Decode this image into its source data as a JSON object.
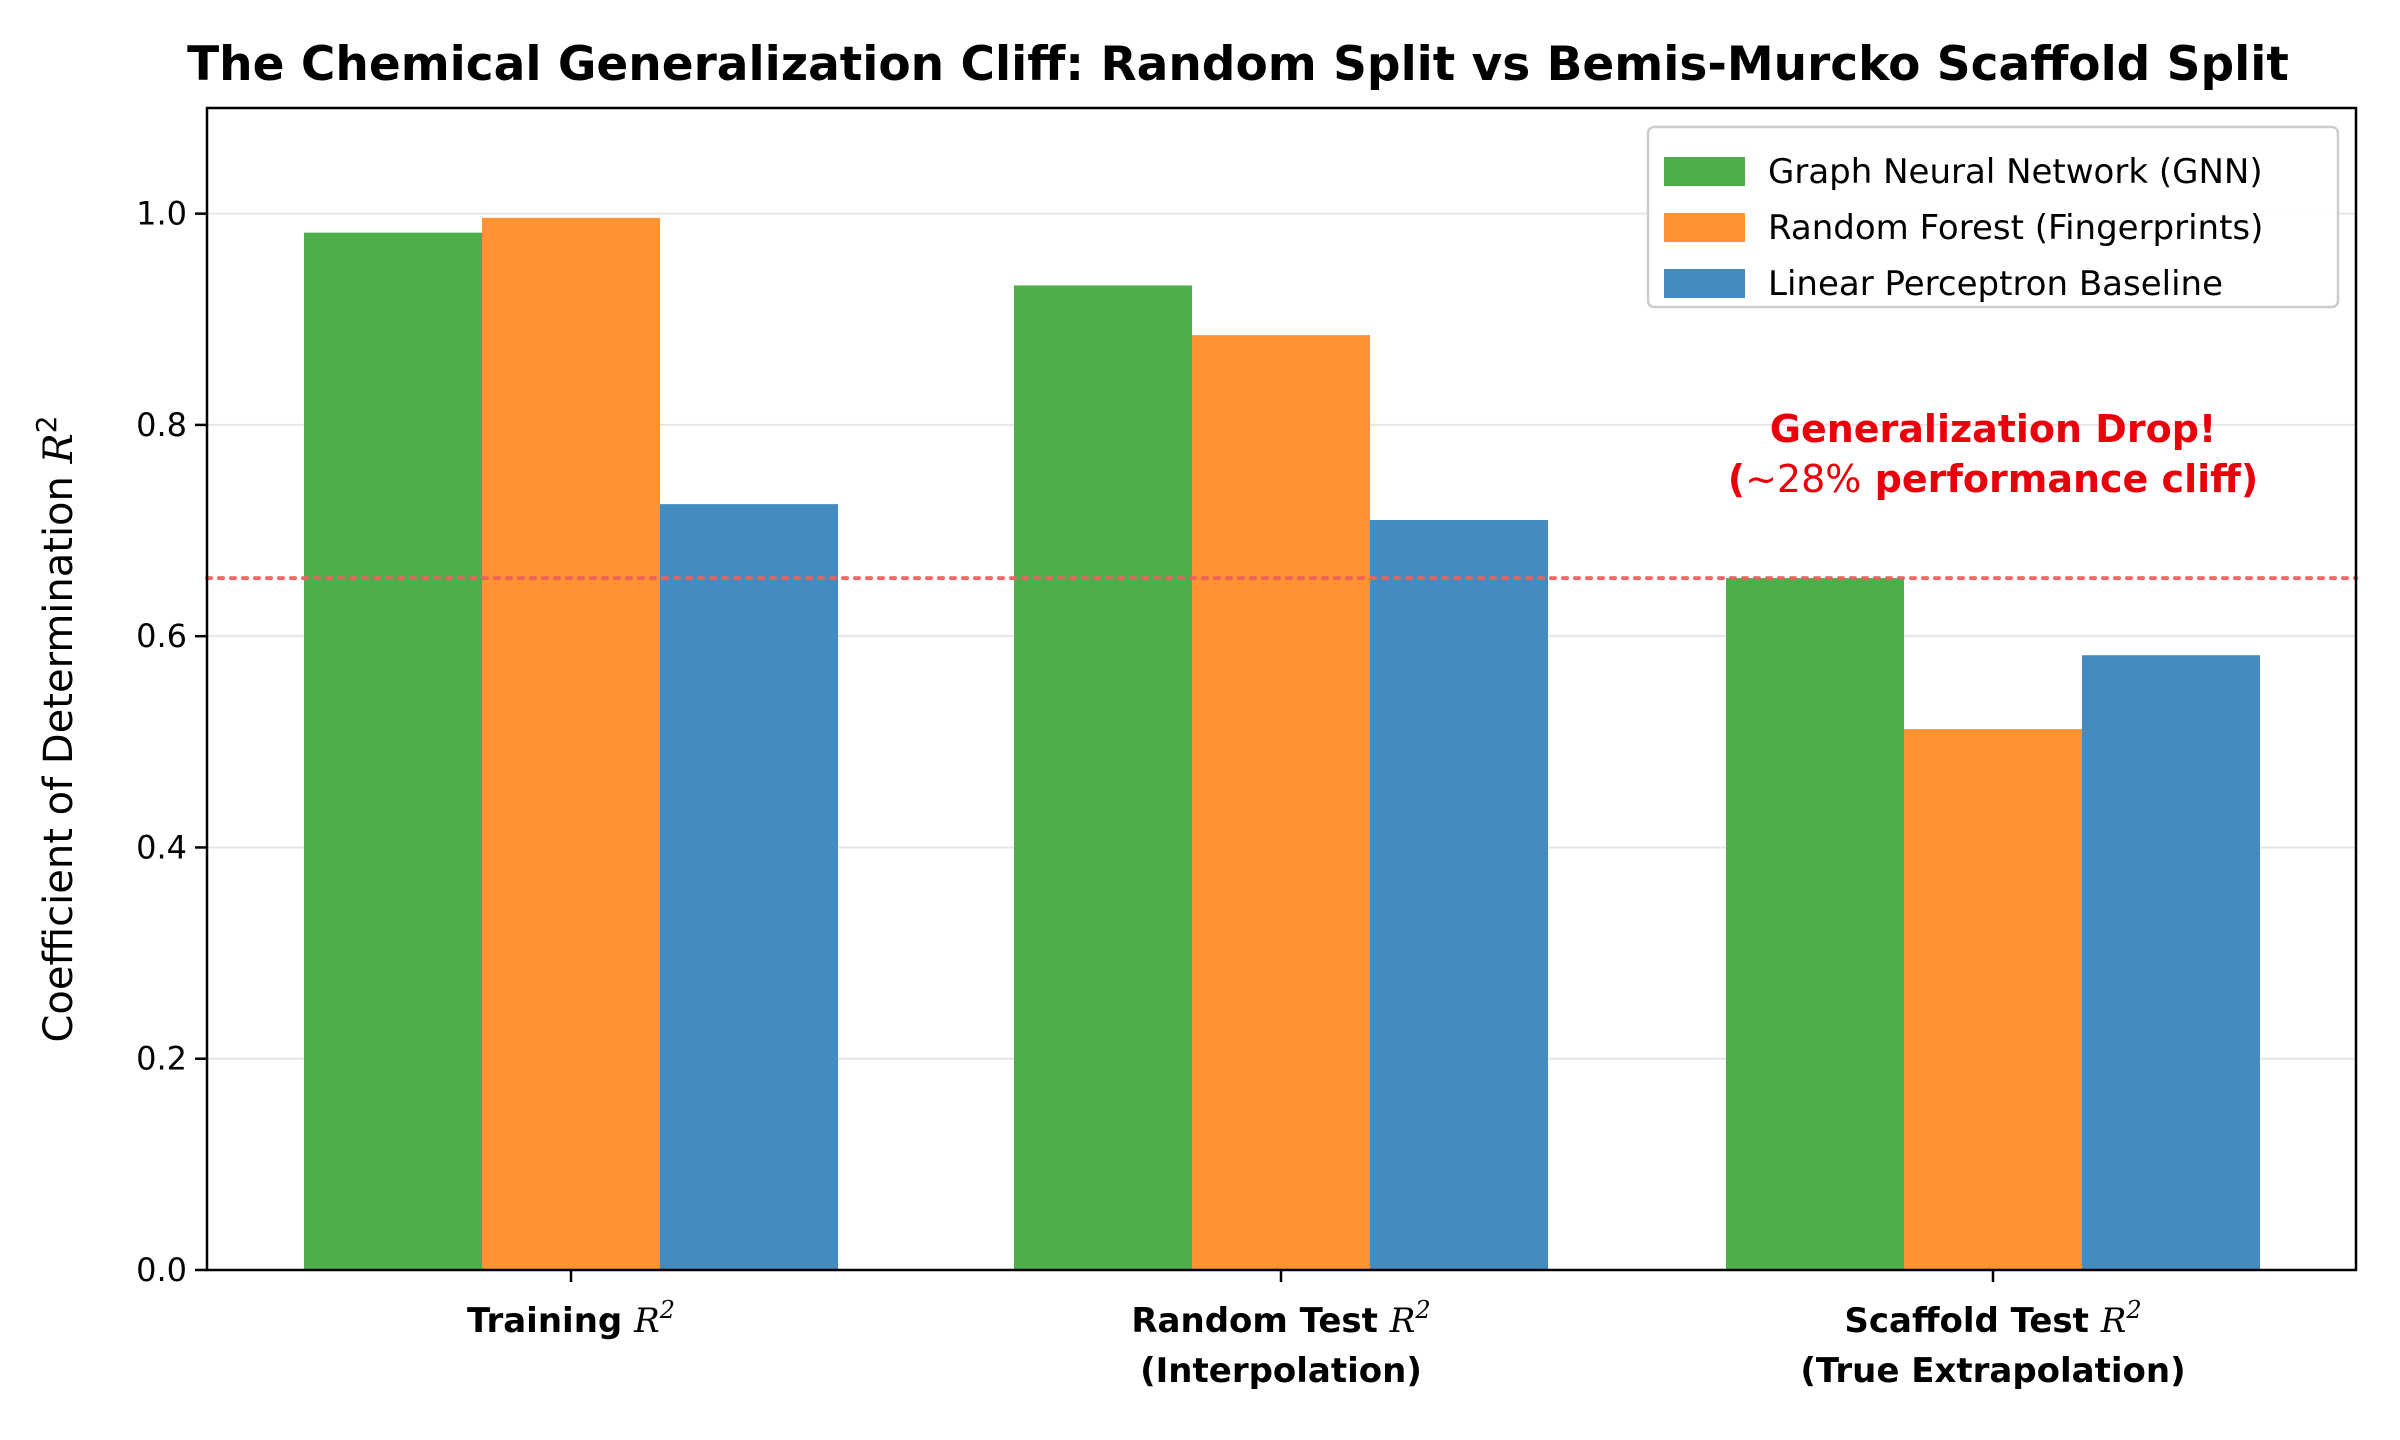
{
  "chart_data": {
    "type": "bar",
    "title": "The Chemical Generalization Cliff: Random Split vs Bemis-Murcko Scaffold Split",
    "ylabel": "Coefficient of Determination R²",
    "ylabel_main": "Coefficient of Determination ",
    "ylabel_symbol": "R",
    "ylabel_sup": "2",
    "ylim": [
      0,
      1.1
    ],
    "yticks": [
      0.0,
      0.2,
      0.4,
      0.6,
      0.8,
      1.0
    ],
    "ytick_labels": [
      "0.0",
      "0.2",
      "0.4",
      "0.6",
      "0.8",
      "1.0"
    ],
    "grid": "horizontal",
    "categories": [
      {
        "line1_text": "Training ",
        "line1_symbol": "R",
        "line1_sup": "2",
        "line2": ""
      },
      {
        "line1_text": "Random Test ",
        "line1_symbol": "R",
        "line1_sup": "2",
        "line2": "(Interpolation)"
      },
      {
        "line1_text": "Scaffold Test ",
        "line1_symbol": "R",
        "line1_sup": "2",
        "line2": "(True Extrapolation)"
      }
    ],
    "series": [
      {
        "name": "Graph Neural Network (GNN)",
        "color": "#4daf4a",
        "values": [
          0.982,
          0.932,
          0.655
        ]
      },
      {
        "name": "Random Forest (Fingerprints)",
        "color": "#ff9232",
        "values": [
          0.996,
          0.885,
          0.512
        ]
      },
      {
        "name": "Linear Perceptron Baseline",
        "color": "#438bc1",
        "values": [
          0.725,
          0.71,
          0.582
        ]
      }
    ],
    "legend": "top-right",
    "reference_line": {
      "y": 0.655,
      "color": "#f0615e",
      "style": "dotted"
    },
    "annotation": {
      "line1": "Generalization Drop!",
      "line2_pre": "(",
      "line2_mid": "~28%",
      "line2_post": " performance cliff)",
      "color": "#e8000b",
      "x_category": 2,
      "y": 0.76
    }
  }
}
